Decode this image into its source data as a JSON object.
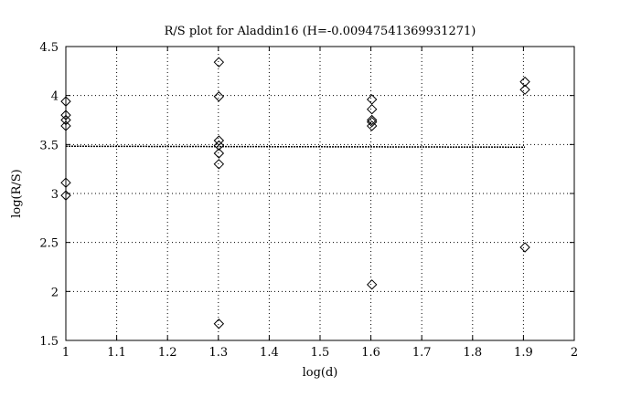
{
  "chart_data": {
    "type": "scatter",
    "title": "R/S plot for Aladdin16 (H=-0.00947541369931271)",
    "xlabel": "log(d)",
    "ylabel": "log(R/S)",
    "xlim": [
      1,
      2
    ],
    "ylim": [
      1.5,
      4.5
    ],
    "xticks": [
      "1",
      "1.1",
      "1.2",
      "1.3",
      "1.4",
      "1.5",
      "1.6",
      "1.7",
      "1.8",
      "1.9",
      "2"
    ],
    "yticks": [
      "1.5",
      "2",
      "2.5",
      "3",
      "3.5",
      "4",
      "4.5"
    ],
    "grid": true,
    "legend": "none",
    "marker": "diamond",
    "points": [
      {
        "x": 1.0,
        "y": 3.94
      },
      {
        "x": 1.0,
        "y": 3.8
      },
      {
        "x": 1.0,
        "y": 3.75
      },
      {
        "x": 1.0,
        "y": 3.69
      },
      {
        "x": 1.0,
        "y": 3.11
      },
      {
        "x": 1.0,
        "y": 2.98
      },
      {
        "x": 1.301,
        "y": 4.34
      },
      {
        "x": 1.301,
        "y": 3.99
      },
      {
        "x": 1.301,
        "y": 3.54
      },
      {
        "x": 1.301,
        "y": 3.49
      },
      {
        "x": 1.301,
        "y": 3.41
      },
      {
        "x": 1.301,
        "y": 3.3
      },
      {
        "x": 1.301,
        "y": 1.67
      },
      {
        "x": 1.602,
        "y": 3.96
      },
      {
        "x": 1.602,
        "y": 3.86
      },
      {
        "x": 1.602,
        "y": 3.75
      },
      {
        "x": 1.602,
        "y": 3.73
      },
      {
        "x": 1.602,
        "y": 3.69
      },
      {
        "x": 1.602,
        "y": 2.07
      },
      {
        "x": 1.903,
        "y": 4.14
      },
      {
        "x": 1.903,
        "y": 4.06
      },
      {
        "x": 1.903,
        "y": 2.45
      }
    ],
    "fit_line": {
      "x": [
        1.0,
        1.903
      ],
      "y": [
        3.482,
        3.473
      ]
    },
    "colors": {
      "marker": "#000000",
      "fit_line": "#000000",
      "grid": "#000000",
      "background": "#ffffff"
    }
  }
}
